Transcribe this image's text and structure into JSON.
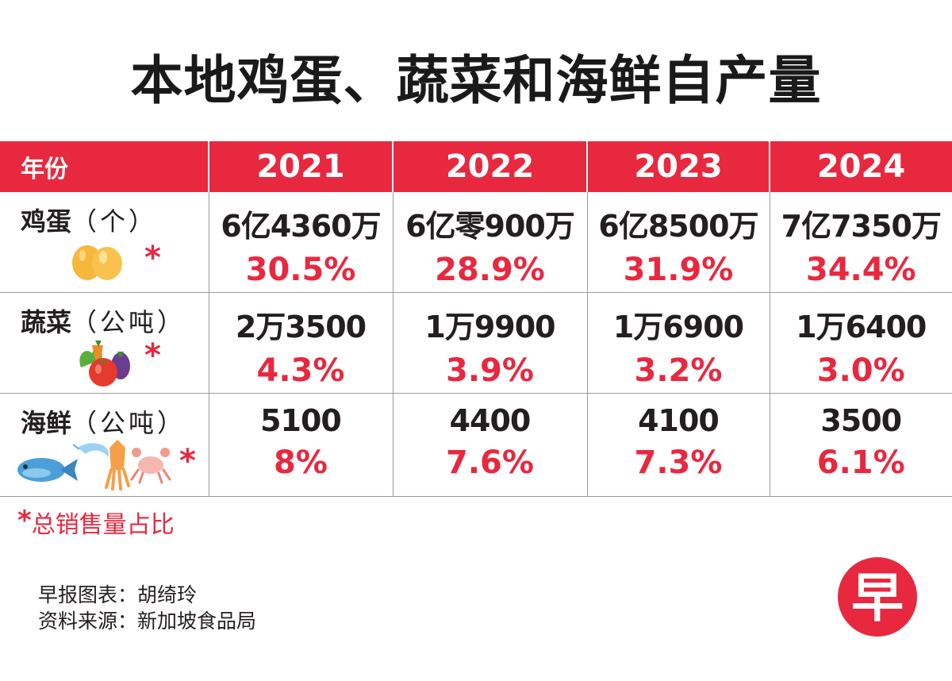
{
  "title": "本地鸡蛋、蔬菜和海鲜自产量",
  "colors": {
    "accent": "#e8283f",
    "text": "#231f20",
    "grid": "#9a9a9a"
  },
  "chart_data": {
    "type": "table",
    "title": "本地鸡蛋、蔬菜和海鲜自产量",
    "header": [
      "年份",
      "2021",
      "2022",
      "2023",
      "2024"
    ],
    "rows": [
      {
        "label": "鸡蛋",
        "unit": "（个）",
        "icon": "eggs-icon",
        "amounts": [
          "6亿4360万",
          "6亿零900万",
          "6亿8500万",
          "7亿7350万"
        ],
        "shares": [
          "30.5%",
          "28.9%",
          "31.9%",
          "34.4%"
        ]
      },
      {
        "label": "蔬菜",
        "unit": "（公吨）",
        "icon": "vegetables-icon",
        "amounts": [
          "2万3500",
          "1万9900",
          "1万6900",
          "1万6400"
        ],
        "shares": [
          "4.3%",
          "3.9%",
          "3.2%",
          "3.0%"
        ]
      },
      {
        "label": "海鲜",
        "unit": "（公吨）",
        "icon": "seafood-icon",
        "amounts": [
          "5100",
          "4400",
          "4100",
          "3500"
        ],
        "shares": [
          "8%",
          "7.6%",
          "7.3%",
          "6.1%"
        ]
      }
    ],
    "share_marker": "*"
  },
  "footnote": {
    "marker": "*",
    "text": "总销售量占比"
  },
  "credits": {
    "chart_by": "早报图表：胡绮玲",
    "source": "资料来源：新加坡食品局"
  },
  "logo": {
    "char": "早",
    "icon": "zaobao-logo-icon"
  }
}
